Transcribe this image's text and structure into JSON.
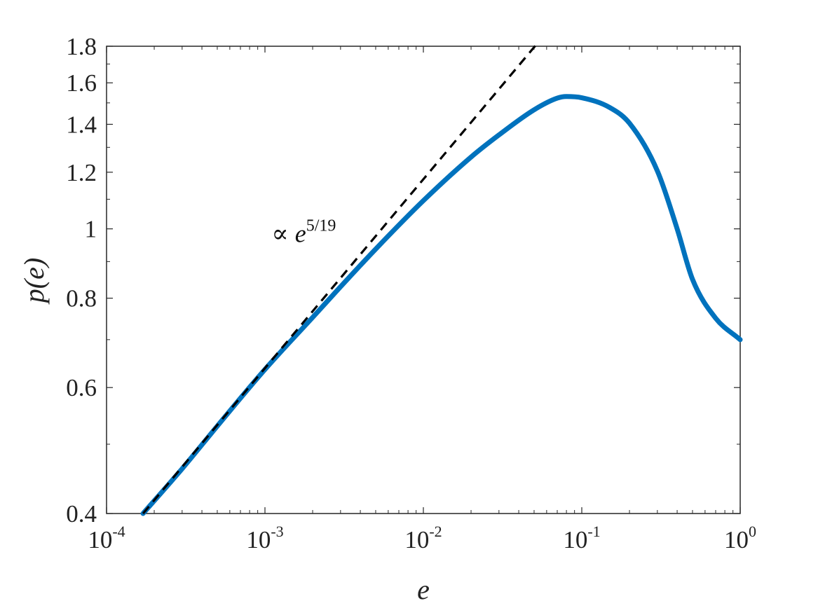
{
  "chart_data": {
    "type": "line",
    "xscale": "log",
    "yscale": "log",
    "xlim": [
      0.0001,
      1
    ],
    "ylim": [
      0.4,
      1.8
    ],
    "xlabel_base": "p",
    "xlabel_arg": "e",
    "xlabel": "e",
    "ylabel": "p(e)",
    "grid": false,
    "x_ticks": [
      {
        "base": "10",
        "exp": "-4",
        "value": 0.0001
      },
      {
        "base": "10",
        "exp": "-3",
        "value": 0.001
      },
      {
        "base": "10",
        "exp": "-2",
        "value": 0.01
      },
      {
        "base": "10",
        "exp": "-1",
        "value": 0.1
      },
      {
        "base": "10",
        "exp": "0",
        "value": 1
      }
    ],
    "y_ticks": [
      {
        "label": "0.4",
        "value": 0.4
      },
      {
        "label": "0.6",
        "value": 0.6
      },
      {
        "label": "0.8",
        "value": 0.8
      },
      {
        "label": "1",
        "value": 1.0
      },
      {
        "label": "1.2",
        "value": 1.2
      },
      {
        "label": "1.4",
        "value": 1.4
      },
      {
        "label": "1.6",
        "value": 1.6
      },
      {
        "label": "1.8",
        "value": 1.8
      }
    ],
    "series": [
      {
        "style": "solid",
        "color": "#0072bd",
        "x": [
          0.00017,
          0.0003,
          0.0005,
          0.001,
          0.002,
          0.003,
          0.005,
          0.01,
          0.02,
          0.03,
          0.05,
          0.07,
          0.08,
          0.1,
          0.15,
          0.2,
          0.3,
          0.4,
          0.5,
          0.7,
          1.0
        ],
        "y": [
          0.4,
          0.462,
          0.53,
          0.636,
          0.752,
          0.83,
          0.937,
          1.095,
          1.26,
          1.353,
          1.467,
          1.523,
          1.531,
          1.525,
          1.478,
          1.405,
          1.205,
          1.0,
          0.85,
          0.75,
          0.7
        ]
      },
      {
        "style": "dashed",
        "color": "#000000",
        "x": [
          0.00017,
          0.052
        ],
        "y": [
          0.4,
          1.813
        ]
      }
    ],
    "annotations": [
      {
        "prefix": "∝ e",
        "exp": "5/19",
        "x": 0.0011,
        "y": 0.985
      }
    ]
  }
}
